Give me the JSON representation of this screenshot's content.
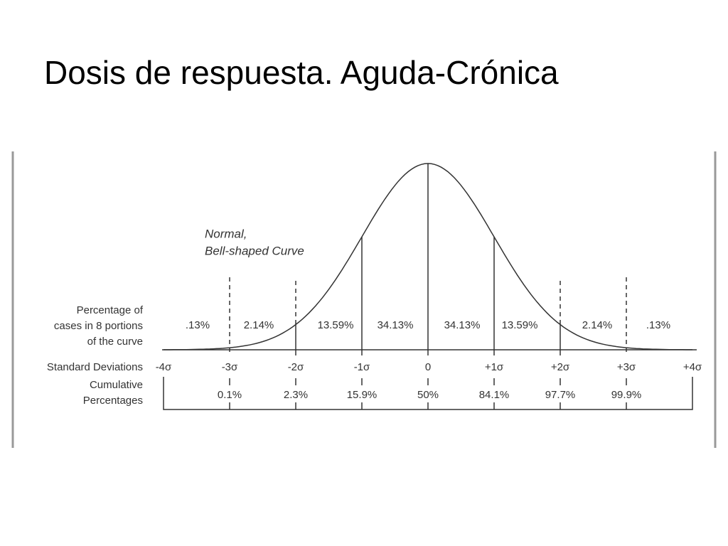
{
  "title": "Dosis de respuesta. Aguda-Crónica",
  "curve_label": [
    "Normal,",
    "Bell-shaped Curve"
  ],
  "row_labels": {
    "portions": [
      "Percentage of",
      "cases in 8 portions",
      "of the curve"
    ],
    "deviations": [
      "Standard Deviations"
    ],
    "cumulative": [
      "Cumulative",
      "Percentages"
    ]
  },
  "portions": [
    ".13%",
    "2.14%",
    "13.59%",
    "34.13%",
    "34.13%",
    "13.59%",
    "2.14%",
    ".13%"
  ],
  "deviations": [
    "-4σ",
    "-3σ",
    "-2σ",
    "-1σ",
    "0",
    "+1σ",
    "+2σ",
    "+3σ",
    "+4σ"
  ],
  "cumulative": [
    "0.1%",
    "2.3%",
    "15.9%",
    "50%",
    "84.1%",
    "97.7%",
    "99.9%"
  ]
}
